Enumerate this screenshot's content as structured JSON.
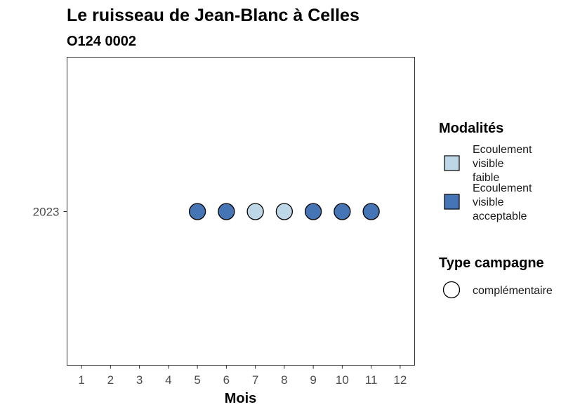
{
  "chart_data": {
    "type": "scatter",
    "title": "Le ruisseau de Jean-Blanc à Celles",
    "subtitle": "O124 0002",
    "xlabel": "Mois",
    "ylabel": "",
    "x_ticks": [
      "1",
      "2",
      "3",
      "4",
      "5",
      "6",
      "7",
      "8",
      "9",
      "10",
      "11",
      "12"
    ],
    "xlim": [
      0.5,
      12.5
    ],
    "y_categories": [
      "2023"
    ],
    "grid": false,
    "points": [
      {
        "month": 5,
        "year": "2023",
        "modalite": "Ecoulement visible acceptable",
        "campagne": "complémentaire"
      },
      {
        "month": 6,
        "year": "2023",
        "modalite": "Ecoulement visible acceptable",
        "campagne": "complémentaire"
      },
      {
        "month": 7,
        "year": "2023",
        "modalite": "Ecoulement visible faible",
        "campagne": "complémentaire"
      },
      {
        "month": 8,
        "year": "2023",
        "modalite": "Ecoulement visible faible",
        "campagne": "complémentaire"
      },
      {
        "month": 9,
        "year": "2023",
        "modalite": "Ecoulement visible acceptable",
        "campagne": "complémentaire"
      },
      {
        "month": 10,
        "year": "2023",
        "modalite": "Ecoulement visible acceptable",
        "campagne": "complémentaire"
      },
      {
        "month": 11,
        "year": "2023",
        "modalite": "Ecoulement visible acceptable",
        "campagne": "complémentaire"
      }
    ],
    "legend_placement": "right",
    "legend": {
      "fill_title": "Modalités",
      "fill_items": [
        {
          "lines": [
            "Ecoulement",
            "visible",
            "faible"
          ],
          "key": "Ecoulement visible faible",
          "color": "#bdd7e7"
        },
        {
          "lines": [
            "Ecoulement",
            "visible",
            "acceptable"
          ],
          "key": "Ecoulement visible acceptable",
          "color": "#4575b4"
        }
      ],
      "shape_title": "Type campagne",
      "shape_items": [
        {
          "label": "complémentaire",
          "shape": "circle"
        }
      ]
    }
  }
}
